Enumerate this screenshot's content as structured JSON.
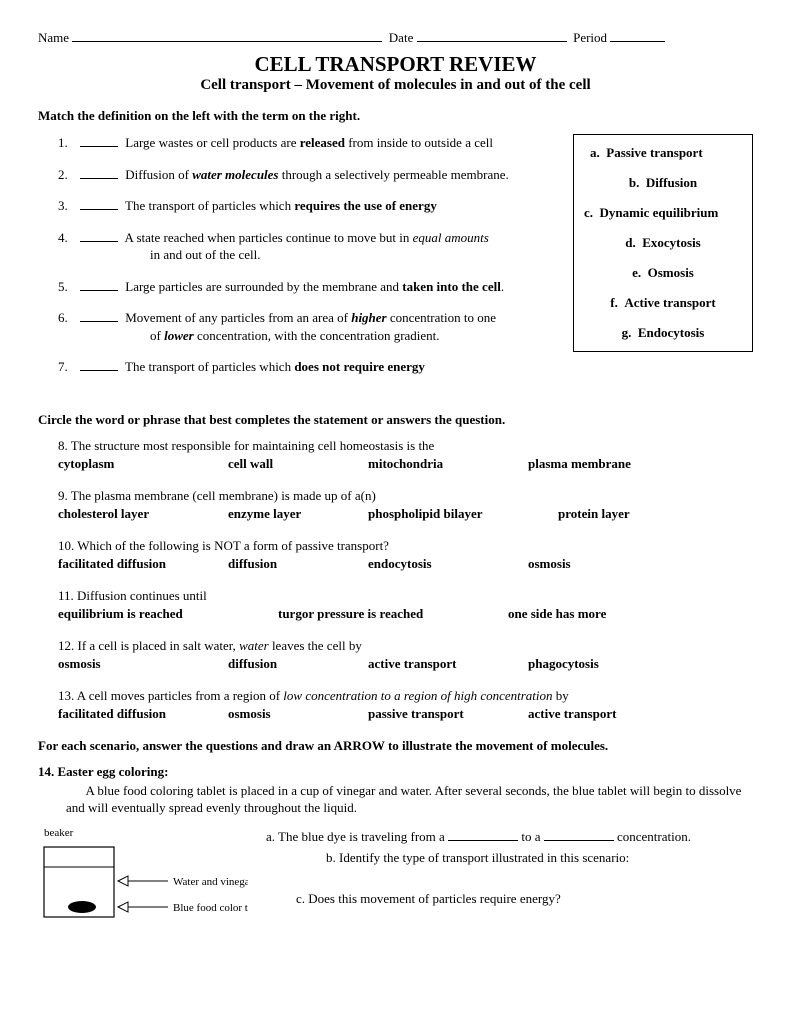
{
  "header": {
    "name_label": "Name",
    "date_label": "Date",
    "period_label": "Period"
  },
  "title": {
    "line1": "CELL TRANSPORT REVIEW",
    "line2": "Cell transport – Movement of molecules in and out of the cell"
  },
  "match": {
    "instruction": "Match the definition on the left with the term on the right.",
    "items": [
      {
        "num": "1.",
        "pre": "Large wastes or cell products are ",
        "bold": "released",
        "post": " from inside to outside a cell"
      },
      {
        "num": "2.",
        "pre": "Diffusion of ",
        "bolditalic": "water molecules",
        "post": " through a selectively permeable membrane."
      },
      {
        "num": "3.",
        "pre": "The transport of particles which ",
        "bold": "requires the use of energy",
        "post": ""
      },
      {
        "num": "4.",
        "pre": "A state reached when particles continue to move but in ",
        "italic": "equal amounts",
        "post": "",
        "cont": "in and out of the cell."
      },
      {
        "num": "5.",
        "pre": "Large particles are surrounded by the membrane and ",
        "bold": "taken into the cell",
        "post": "."
      },
      {
        "num": "6.",
        "pre": "Movement of any particles from an area of ",
        "bolditalic": "higher",
        "post": " concentration to one",
        "cont_pre": "of ",
        "cont_bolditalic": "lower",
        "cont_post": " concentration, with the concentration gradient."
      },
      {
        "num": "7.",
        "pre": "The transport of particles which ",
        "bold": "does not require energy",
        "post": ""
      }
    ],
    "terms": [
      {
        "letter": "a.",
        "text": "Passive transport"
      },
      {
        "letter": "b.",
        "text": "Diffusion"
      },
      {
        "letter": "c.",
        "text": "Dynamic equilibrium"
      },
      {
        "letter": "d.",
        "text": "Exocytosis"
      },
      {
        "letter": "e.",
        "text": "Osmosis"
      },
      {
        "letter": "f.",
        "text": "Active transport"
      },
      {
        "letter": "g.",
        "text": "Endocytosis"
      }
    ]
  },
  "circle": {
    "instruction": "Circle the word or phrase that best completes the statement or answers the question.",
    "questions": [
      {
        "num": "8.",
        "text": "The structure most responsible for maintaining cell homeostasis is the",
        "opts": [
          "cytoplasm",
          "cell wall",
          "mitochondria",
          "plasma membrane"
        ],
        "widths": [
          170,
          140,
          160,
          140
        ]
      },
      {
        "num": "9.",
        "text": "The plasma membrane (cell membrane) is made up of a(n)",
        "opts": [
          "cholesterol layer",
          "enzyme layer",
          "phospholipid bilayer",
          "protein layer"
        ],
        "widths": [
          170,
          140,
          190,
          110
        ]
      },
      {
        "num": "10.",
        "text": "Which of the following is NOT a form of passive transport?",
        "opts": [
          "facilitated diffusion",
          "diffusion",
          "endocytosis",
          "osmosis"
        ],
        "widths": [
          170,
          140,
          160,
          100
        ]
      },
      {
        "num": "11.",
        "text": "Diffusion continues until",
        "opts": [
          "equilibrium is reached",
          "turgor pressure is reached",
          "one side has more"
        ],
        "widths": [
          220,
          230,
          150
        ]
      },
      {
        "num": "12.",
        "pre": "If a cell is placed in salt water, ",
        "italic": "water",
        "post": " leaves the cell by",
        "opts": [
          "osmosis",
          "diffusion",
          "active transport",
          "phagocytosis"
        ],
        "widths": [
          170,
          140,
          160,
          120
        ]
      },
      {
        "num": "13.",
        "pre": "A cell moves particles from a region of ",
        "italic": "low concentration to a region of high concentration",
        "post": " by",
        "opts": [
          "facilitated diffusion",
          "osmosis",
          "passive transport",
          "active transport"
        ],
        "widths": [
          170,
          140,
          160,
          130
        ]
      }
    ]
  },
  "scenario": {
    "instruction": "For each scenario, answer the questions and draw an ARROW to illustrate the movement of molecules.",
    "title": "14. Easter egg coloring",
    "text": "A blue food coloring tablet is placed in a cup of vinegar and water.  After several seconds, the blue tablet will begin to dissolve and will eventually spread evenly throughout the liquid.",
    "beaker_label": "beaker",
    "arrow1_label": "Water and vinegar",
    "arrow2_label": "Blue food color tablet",
    "qa": "a. The blue dye is traveling from a",
    "qa_mid": "to a",
    "qa_end": "concentration.",
    "qb": "b. Identify the type of transport illustrated in this scenario:",
    "qc": "c. Does this movement of particles require energy?"
  }
}
